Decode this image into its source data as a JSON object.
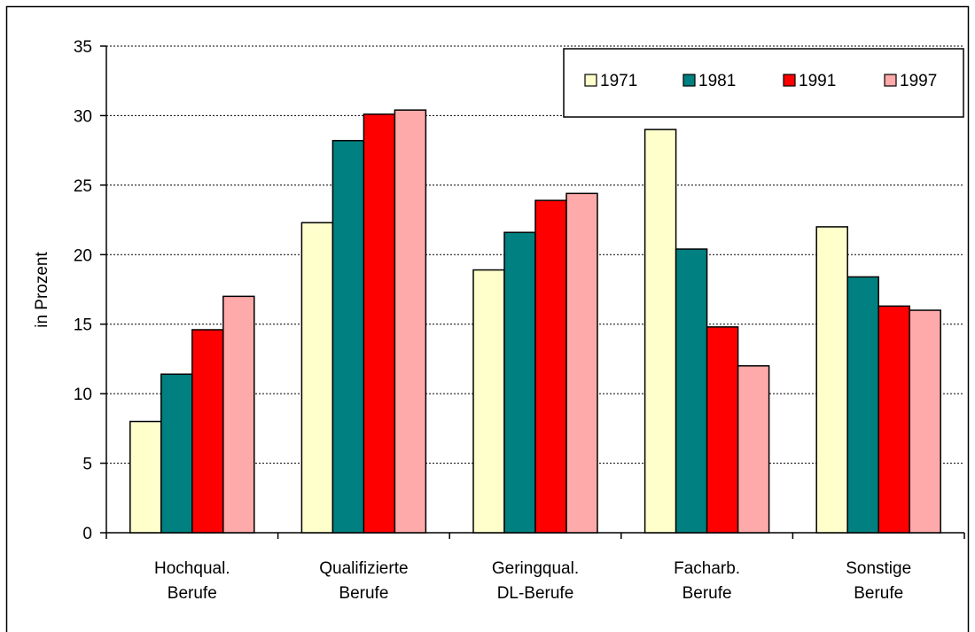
{
  "chart_data": {
    "type": "bar",
    "title": "",
    "xlabel": "",
    "ylabel": "in Prozent",
    "ylim": [
      0,
      35
    ],
    "yticks": [
      0,
      5,
      10,
      15,
      20,
      25,
      30,
      35
    ],
    "grid": true,
    "legend_position": "top-right",
    "categories": [
      [
        "Hochqual.",
        "Berufe"
      ],
      [
        "Qualifizierte",
        "Berufe"
      ],
      [
        "Geringqual.",
        "DL-Berufe"
      ],
      [
        "Facharb.",
        "Berufe"
      ],
      [
        "Sonstige",
        "Berufe"
      ]
    ],
    "series": [
      {
        "name": "1971",
        "color": "#FFFFCC",
        "values": [
          8.0,
          22.3,
          18.9,
          29.0,
          22.0
        ]
      },
      {
        "name": "1981",
        "color": "#008080",
        "values": [
          11.4,
          28.2,
          21.6,
          20.4,
          18.4
        ]
      },
      {
        "name": "1991",
        "color": "#FF0000",
        "values": [
          14.6,
          30.1,
          23.9,
          14.8,
          16.3
        ]
      },
      {
        "name": "1997",
        "color": "#FFAAAA",
        "values": [
          17.0,
          30.4,
          24.4,
          12.0,
          16.0
        ]
      }
    ]
  }
}
